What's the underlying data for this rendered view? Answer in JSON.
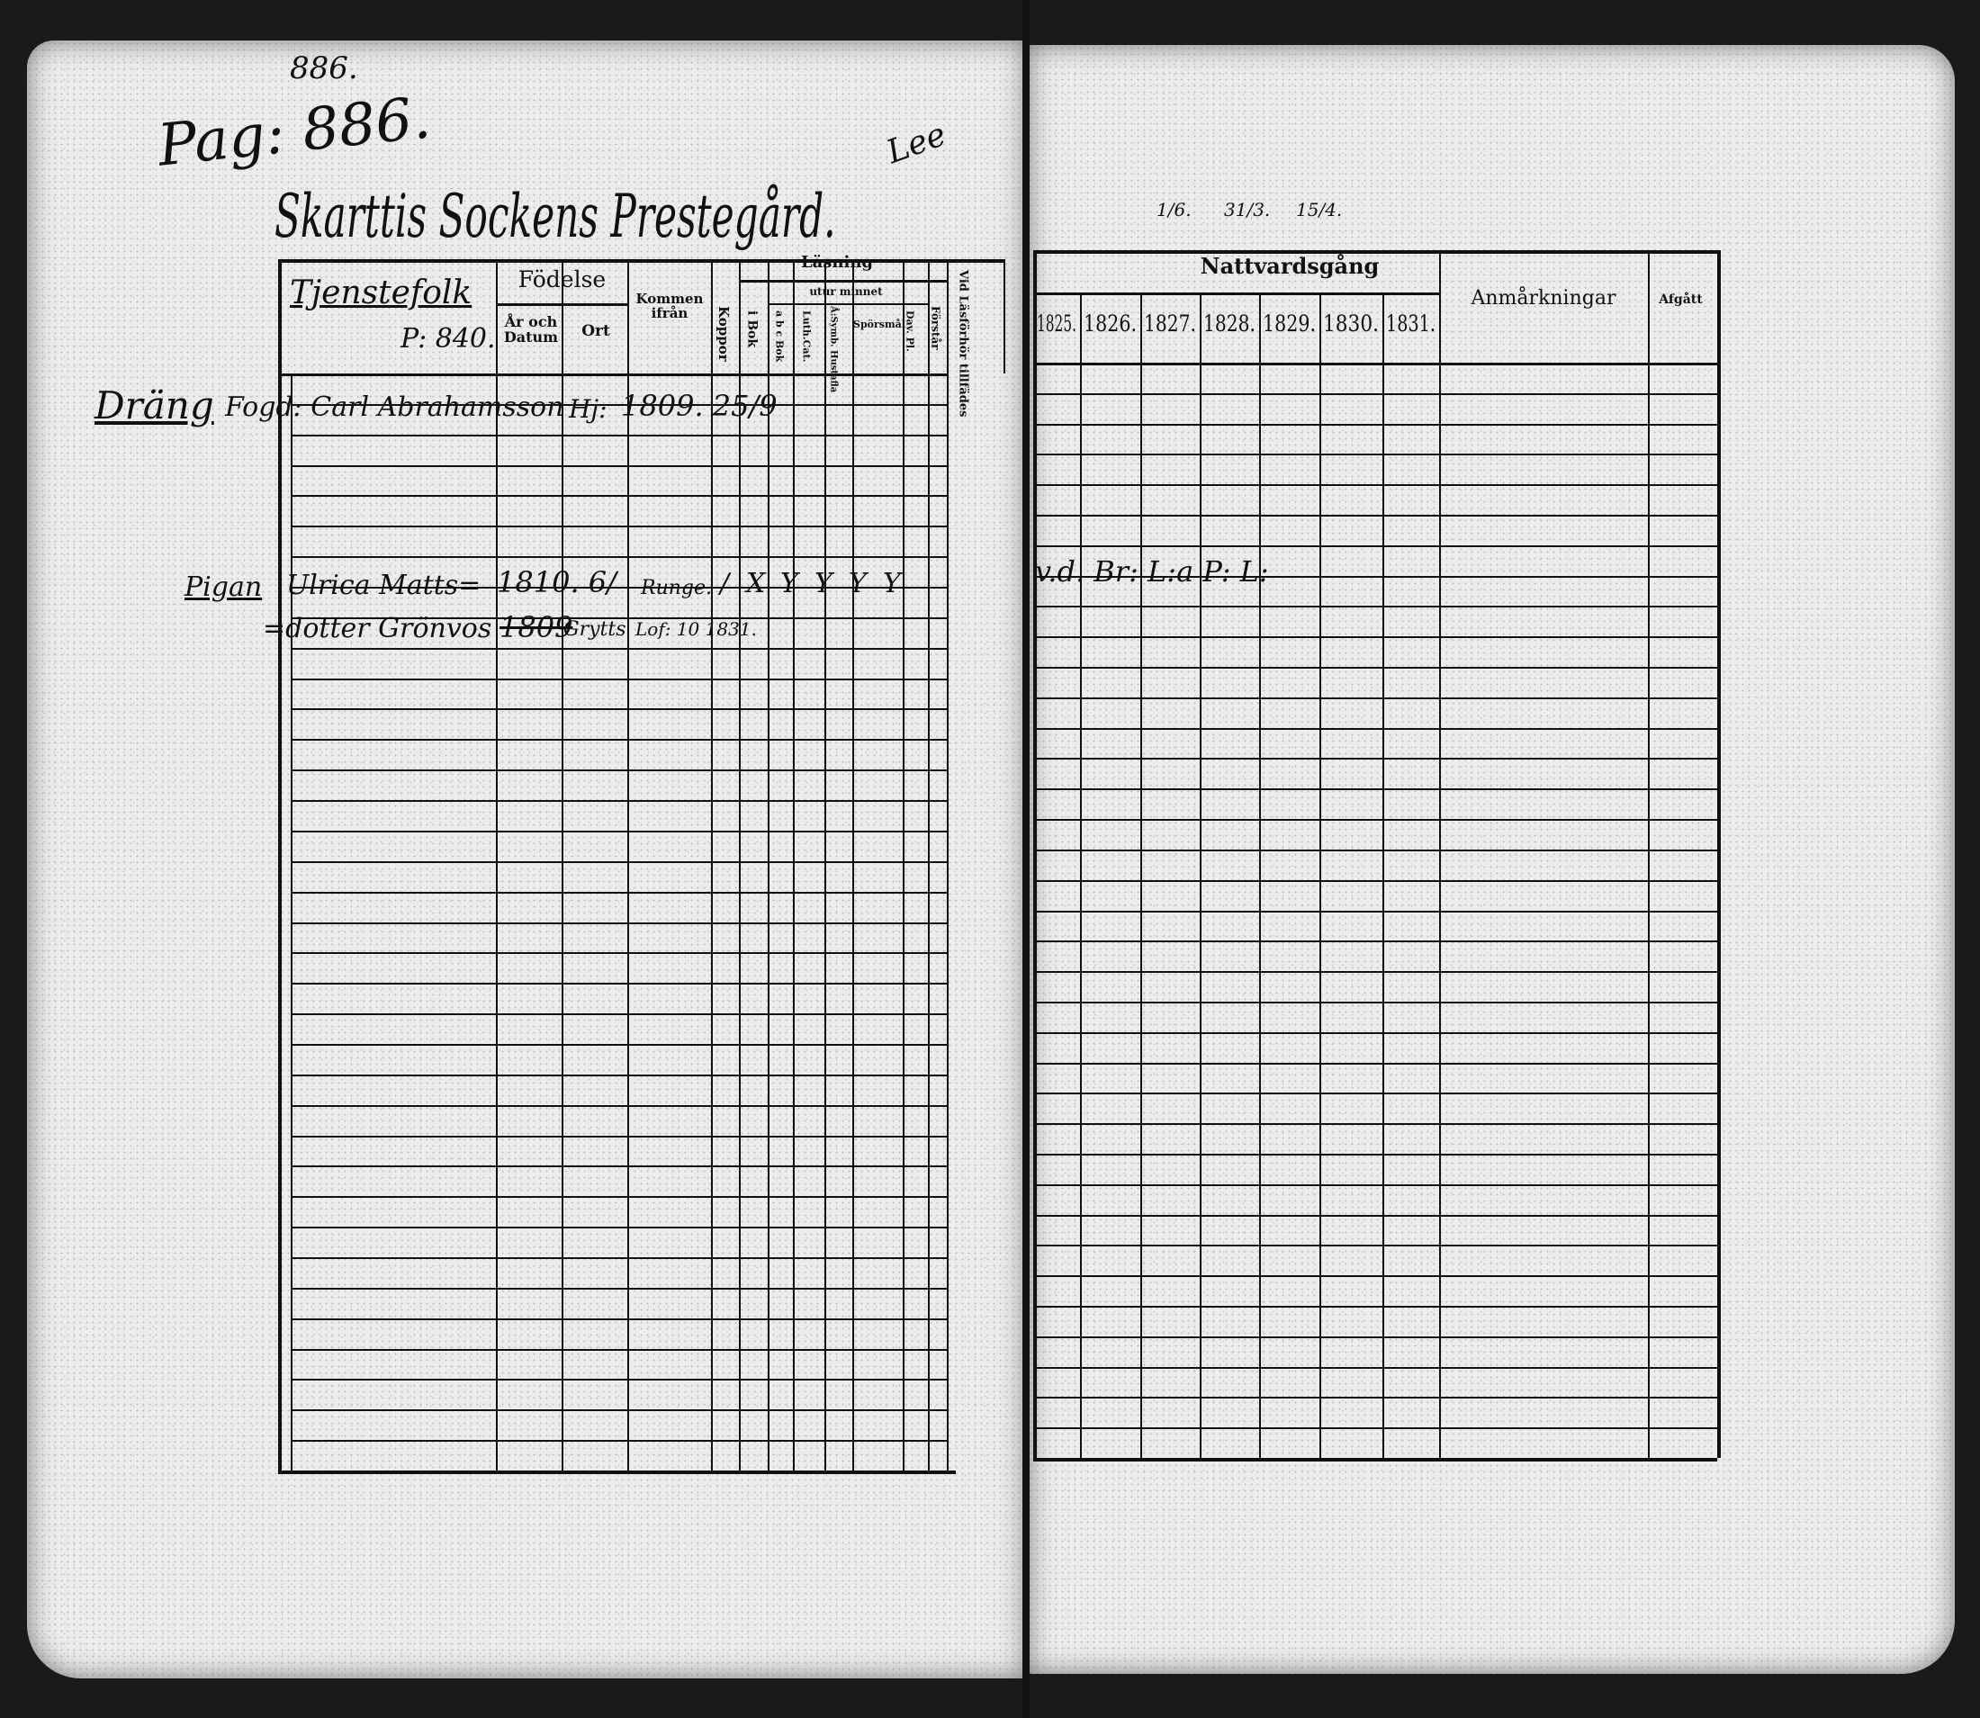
{
  "left_page": {
    "page_number_top": "886.",
    "page_ref": "Pag: 886.",
    "title": "Skarttis Sockens Prestegård.",
    "title_mark": "Lee",
    "headers": {
      "col_name": "Tjenstefolk",
      "col_name_ref": "P: 840.",
      "fodelse": "Födelse",
      "ar_och_datum": "År och Datum",
      "ort": "Ort",
      "kommen_ifran": "Kommen ifrån",
      "koppor": "Koppor",
      "lasning": "Läsning",
      "i_bok": "i Bok",
      "utur_minnet": "utur minnet",
      "abc_bok": "a b c Bok",
      "luth_cat": "Luth.Cat.",
      "sv_hustafla": "Å:Symb. Hustafla",
      "sporsmal": "Spörsmål",
      "dav_pl": "Dav. Pl.",
      "forstar": "Förstår",
      "vid_lasforhor": "Vid Läsförhör tillfädes"
    },
    "entries": [
      {
        "role": "Dräng",
        "name": "Fogd: Carl Abrahamsson",
        "birth_year_date": "1809. 25/9",
        "birth_place": "Hj:"
      },
      {
        "role": "Pigan",
        "name_line1": "Ulrica Matts=",
        "name_line2": "=dotter Grönvos",
        "birth_year_date": "1810. 6/",
        "birth_year_alt": "1809",
        "birth_place": "Grytts",
        "kommen_ifran_line1": "Runge.",
        "kommen_ifran_line2": "Lof: 10 1831.",
        "koppor": "/",
        "lasning_marks": [
          "X",
          "Y",
          "Y",
          "Y",
          "Y"
        ]
      }
    ]
  },
  "right_page": {
    "dates_above": [
      "1/6.",
      "31/3.",
      "15/4."
    ],
    "headers": {
      "nattvardsgang": "Nattvardsgång",
      "years": [
        "1825.",
        "1826.",
        "1827.",
        "1828.",
        "1829.",
        "1830.",
        "1831."
      ],
      "anmarkningar": "Anmårkningar",
      "afgatt": "Afgått"
    },
    "entries": [
      {
        "note": "v.d. Br:  L:a P:  L:"
      }
    ]
  }
}
